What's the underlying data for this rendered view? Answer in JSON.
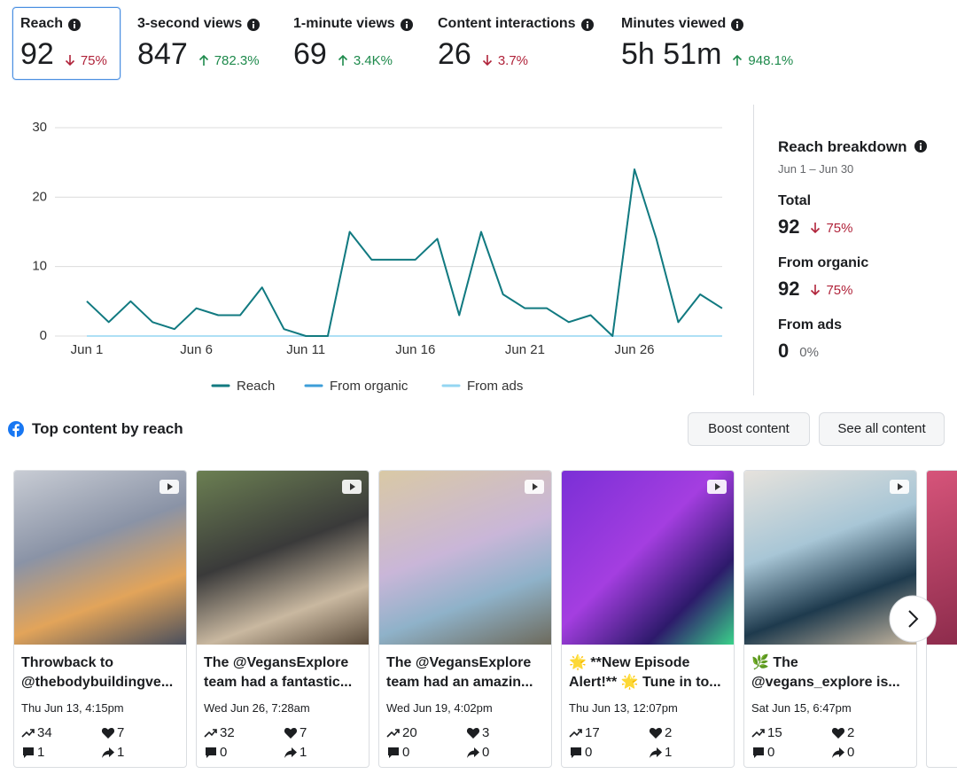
{
  "metrics": [
    {
      "label": "Reach",
      "value": 92,
      "change": "75%",
      "trend": "down",
      "selected": true
    },
    {
      "label": "3-second views",
      "value": 847,
      "change": "782.3%",
      "trend": "up"
    },
    {
      "label": "1-minute views",
      "value": 69,
      "change": "3.4K%",
      "trend": "up"
    },
    {
      "label": "Content interactions",
      "value": 26,
      "change": "3.7%",
      "trend": "down"
    },
    {
      "label": "Minutes viewed",
      "value": "5h 51m",
      "change": "948.1%",
      "trend": "up"
    }
  ],
  "chart_data": {
    "type": "line",
    "categories": [
      "Jun 1",
      null,
      null,
      null,
      null,
      "Jun 6",
      null,
      null,
      null,
      null,
      "Jun 11",
      null,
      null,
      null,
      null,
      "Jun 16",
      null,
      null,
      null,
      null,
      "Jun 21",
      null,
      null,
      null,
      null,
      "Jun 26",
      null,
      null,
      null,
      null
    ],
    "series": [
      {
        "name": "Reach",
        "color": "#127a80",
        "values": [
          5,
          2,
          5,
          2,
          1,
          4,
          3,
          3,
          7,
          1,
          0,
          0,
          15,
          11,
          11,
          11,
          14,
          3,
          15,
          6,
          4,
          4,
          2,
          3,
          0,
          24,
          14,
          2,
          6,
          4
        ]
      },
      {
        "name": "From organic",
        "color": "#3d9ed8",
        "values": [
          5,
          2,
          5,
          2,
          1,
          4,
          3,
          3,
          7,
          1,
          0,
          0,
          15,
          11,
          11,
          11,
          14,
          3,
          15,
          6,
          4,
          4,
          2,
          3,
          0,
          24,
          14,
          2,
          6,
          4
        ]
      },
      {
        "name": "From ads",
        "color": "#94d6f2",
        "values": [
          0,
          0,
          0,
          0,
          0,
          0,
          0,
          0,
          0,
          0,
          0,
          0,
          0,
          0,
          0,
          0,
          0,
          0,
          0,
          0,
          0,
          0,
          0,
          0,
          0,
          0,
          0,
          0,
          0,
          0
        ]
      }
    ],
    "ylim": [
      0,
      30
    ],
    "yticks": [
      0,
      10,
      20,
      30
    ],
    "grid": true,
    "legend": "bottom"
  },
  "breakdown": {
    "title": "Reach breakdown",
    "date_range": "Jun 1 – Jun 30",
    "items": [
      {
        "label": "Total",
        "value": 92,
        "change": "75%",
        "trend": "down"
      },
      {
        "label": "From organic",
        "value": 92,
        "change": "75%",
        "trend": "down"
      },
      {
        "label": "From ads",
        "value": 0,
        "change": "0%",
        "trend": "flat"
      }
    ]
  },
  "top_content": {
    "title": "Top content by reach",
    "buttons": [
      "Boost content",
      "See all content"
    ],
    "posts": [
      {
        "title": "Throwback to @thebodybuildingve...",
        "date": "Thu Jun 13, 4:15pm",
        "reach": 34,
        "reactions": 7,
        "comments": 1,
        "shares": 1
      },
      {
        "title": "The @VegansExplore team had a fantastic...",
        "date": "Wed Jun 26, 7:28am",
        "reach": 32,
        "reactions": 7,
        "comments": 0,
        "shares": 1
      },
      {
        "title": "The @VegansExplore team had an amazin...",
        "date": "Wed Jun 19, 4:02pm",
        "reach": 20,
        "reactions": 3,
        "comments": 0,
        "shares": 0
      },
      {
        "title": "🌟 **New Episode Alert!** 🌟 Tune in to...",
        "date": "Thu Jun 13, 12:07pm",
        "reach": 17,
        "reactions": 2,
        "comments": 0,
        "shares": 1
      },
      {
        "title": "🌿 The @vegans_explore is...",
        "date": "Sat Jun 15, 6:47pm",
        "reach": 15,
        "reactions": 2,
        "comments": 0,
        "shares": 0
      }
    ]
  }
}
